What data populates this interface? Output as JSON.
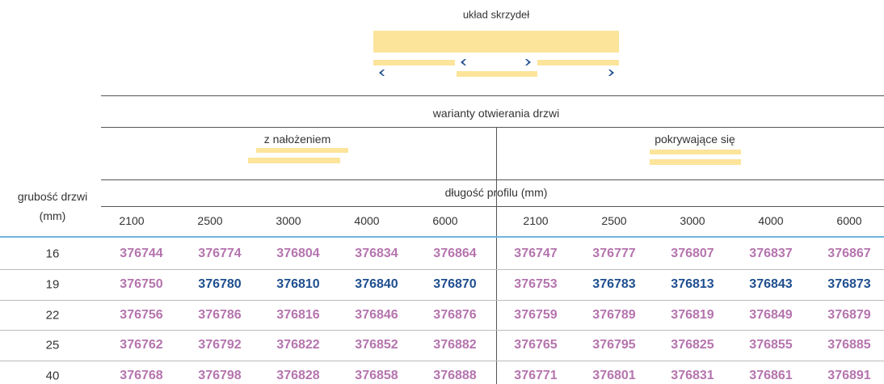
{
  "header": {
    "layout_label": "układ skrzydeł",
    "variants_label": "warianty otwierania drzwi",
    "groups": [
      "z nałożeniem",
      "pokrywające się"
    ],
    "length_label": "długość profilu (mm)",
    "thickness_label": [
      "grubość drzwi",
      "(mm)"
    ],
    "lengths": [
      2100,
      2500,
      3000,
      4000,
      6000,
      2100,
      2500,
      3000,
      4000,
      6000
    ]
  },
  "colors": {
    "pink": "#b574ae",
    "blue": "#1f4f8f"
  },
  "rows": [
    {
      "thickness": 16,
      "codes": [
        376744,
        376774,
        376804,
        376834,
        376864,
        376747,
        376777,
        376807,
        376837,
        376867
      ],
      "color_keys": [
        "pink",
        "pink",
        "pink",
        "pink",
        "pink",
        "pink",
        "pink",
        "pink",
        "pink",
        "pink"
      ]
    },
    {
      "thickness": 19,
      "codes": [
        376750,
        376780,
        376810,
        376840,
        376870,
        376753,
        376783,
        376813,
        376843,
        376873
      ],
      "color_keys": [
        "pink",
        "blue",
        "blue",
        "blue",
        "blue",
        "pink",
        "blue",
        "blue",
        "blue",
        "blue"
      ]
    },
    {
      "thickness": 22,
      "codes": [
        376756,
        376786,
        376816,
        376846,
        376876,
        376759,
        376789,
        376819,
        376849,
        376879
      ],
      "color_keys": [
        "pink",
        "pink",
        "pink",
        "pink",
        "pink",
        "pink",
        "pink",
        "pink",
        "pink",
        "pink"
      ]
    },
    {
      "thickness": 25,
      "codes": [
        376762,
        376792,
        376822,
        376852,
        376882,
        376765,
        376795,
        376825,
        376855,
        376885
      ],
      "color_keys": [
        "pink",
        "pink",
        "pink",
        "pink",
        "pink",
        "pink",
        "pink",
        "pink",
        "pink",
        "pink"
      ]
    },
    {
      "thickness": 40,
      "codes": [
        376768,
        376798,
        376828,
        376858,
        376888,
        376771,
        376801,
        376831,
        376861,
        376891
      ],
      "color_keys": [
        "pink",
        "pink",
        "pink",
        "pink",
        "pink",
        "pink",
        "pink",
        "pink",
        "pink",
        "pink"
      ]
    }
  ]
}
